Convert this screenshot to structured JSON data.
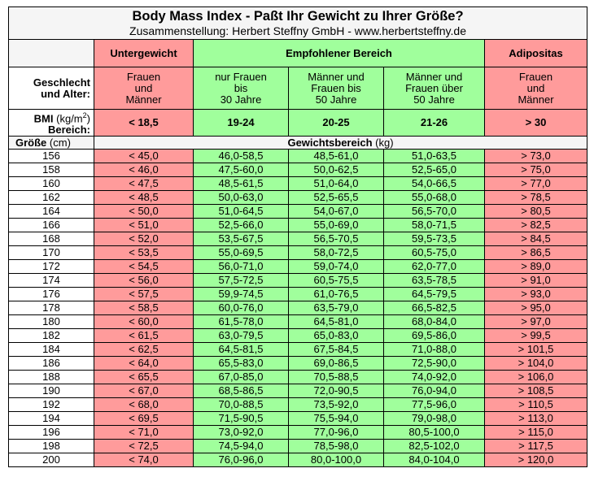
{
  "title": "Body Mass Index - Paßt Ihr Gewicht zu Ihrer Größe?",
  "subtitle": "Zusammenstellung: Herbert Steffny GmbH - www.herbertsteffny.de",
  "categories": {
    "under": "Untergewicht",
    "recommended": "Empfohlener Bereich",
    "obese": "Adipositas"
  },
  "labels": {
    "sex_age_line1": "Geschlecht",
    "sex_age_line2": "und Alter:",
    "bmi_line1": "BMI",
    "bmi_unit": "(kg/m",
    "bmi_sup": "2",
    "bmi_close": ")",
    "bmi_line2": "Bereich:",
    "height": "Größe",
    "height_unit": "(cm)",
    "weight_range": "Gewichtsbereich",
    "weight_unit": "(kg)"
  },
  "groups": [
    [
      "Frauen",
      "und",
      "Männer"
    ],
    [
      "nur Frauen",
      "bis",
      "30 Jahre"
    ],
    [
      "Männer und",
      "Frauen bis",
      "50 Jahre"
    ],
    [
      "Männer und",
      "Frauen über",
      "50 Jahre"
    ],
    [
      "Frauen",
      "und",
      "Männer"
    ]
  ],
  "bmi_ranges": [
    "< 18,5",
    "19-24",
    "20-25",
    "21-26",
    "> 30"
  ],
  "rows": [
    [
      "156",
      "< 45,0",
      "46,0-58,5",
      "48,5-61,0",
      "51,0-63,5",
      "> 73,0"
    ],
    [
      "158",
      "< 46,0",
      "47,5-60,0",
      "50,0-62,5",
      "52,5-65,0",
      "> 75,0"
    ],
    [
      "160",
      "< 47,5",
      "48,5-61,5",
      "51,0-64,0",
      "54,0-66,5",
      "> 77,0"
    ],
    [
      "162",
      "< 48,5",
      "50,0-63,0",
      "52,5-65,5",
      "55,0-68,0",
      "> 78,5"
    ],
    [
      "164",
      "< 50,0",
      "51,0-64,5",
      "54,0-67,0",
      "56,5-70,0",
      "> 80,5"
    ],
    [
      "166",
      "< 51,0",
      "52,5-66,0",
      "55,0-69,0",
      "58,0-71,5",
      "> 82,5"
    ],
    [
      "168",
      "< 52,0",
      "53,5-67,5",
      "56,5-70,5",
      "59,5-73,5",
      "> 84,5"
    ],
    [
      "170",
      "< 53,5",
      "55,0-69,5",
      "58,0-72,5",
      "60,5-75,0",
      "> 86,5"
    ],
    [
      "172",
      "< 54,5",
      "56,0-71,0",
      "59,0-74,0",
      "62,0-77,0",
      "> 89,0"
    ],
    [
      "174",
      "< 56,0",
      "57,5-72,5",
      "60,5-75,5",
      "63,5-78,5",
      "> 91,0"
    ],
    [
      "176",
      "< 57,5",
      "59,9-74,5",
      "61,0-76,5",
      "64,5-79,5",
      "> 93,0"
    ],
    [
      "178",
      "< 58,5",
      "60,0-76,0",
      "63,5-79,0",
      "66,5-82,5",
      "> 95,0"
    ],
    [
      "180",
      "< 60,0",
      "61,5-78,0",
      "64,5-81,0",
      "68,0-84,0",
      "> 97,0"
    ],
    [
      "182",
      "< 61,5",
      "63,0-79,5",
      "65,0-83,0",
      "69,5-86,0",
      "> 99,5"
    ],
    [
      "184",
      "< 62,5",
      "64,5-81,5",
      "67,5-84,5",
      "71,0-88,0",
      "> 101,5"
    ],
    [
      "186",
      "< 64,0",
      "65,5-83,0",
      "69,0-86,5",
      "72,5-90,0",
      "> 104,0"
    ],
    [
      "188",
      "< 65,5",
      "67,0-85,0",
      "70,5-88,5",
      "74,0-92,0",
      "> 106,0"
    ],
    [
      "190",
      "< 67,0",
      "68,5-86,5",
      "72,0-90,5",
      "76,0-94,0",
      "> 108,5"
    ],
    [
      "192",
      "< 68,0",
      "70,0-88,5",
      "73,5-92,0",
      "77,5-96,0",
      "> 110,5"
    ],
    [
      "194",
      "< 69,5",
      "71,5-90,5",
      "75,5-94,0",
      "79,0-98,0",
      "> 113,0"
    ],
    [
      "196",
      "< 71,0",
      "73,0-92,0",
      "77,0-96,0",
      "80,5-100,0",
      "> 115,0"
    ],
    [
      "198",
      "< 72,5",
      "74,5-94,0",
      "78,5-98,0",
      "82,5-102,0",
      "> 117,5"
    ],
    [
      "200",
      "< 74,0",
      "76,0-96,0",
      "80,0-100,0",
      "84,0-104,0",
      "> 120,0"
    ]
  ]
}
